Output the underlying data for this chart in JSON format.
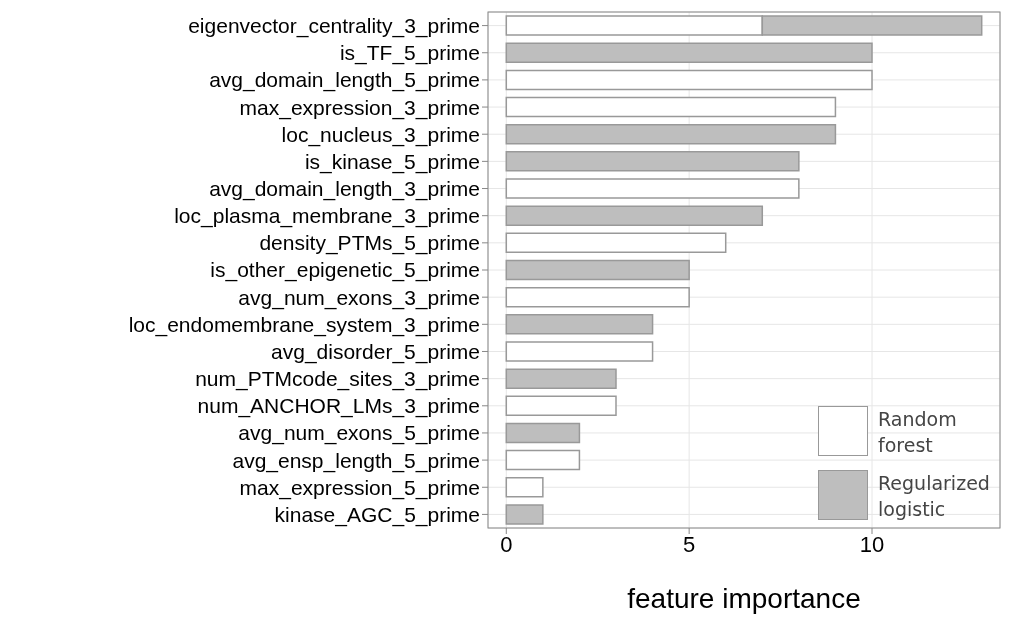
{
  "chart_data": {
    "type": "bar",
    "orientation": "horizontal",
    "stacked": true,
    "xlabel": "feature importance",
    "categories": [
      "eigenvector_centrality_3_prime",
      "is_TF_5_prime",
      "avg_domain_length_5_prime",
      "max_expression_3_prime",
      "loc_nucleus_3_prime",
      "is_kinase_5_prime",
      "avg_domain_length_3_prime",
      "loc_plasma_membrane_3_prime",
      "density_PTMs_5_prime",
      "is_other_epigenetic_5_prime",
      "avg_num_exons_3_prime",
      "loc_endomembrane_system_3_prime",
      "avg_disorder_5_prime",
      "num_PTMcode_sites_3_prime",
      "num_ANCHOR_LMs_3_prime",
      "avg_num_exons_5_prime",
      "avg_ensp_length_5_prime",
      "max_expression_5_prime",
      "kinase_AGC_5_prime"
    ],
    "series": [
      {
        "name": "Random forest",
        "color": "#ffffff",
        "values": [
          7,
          null,
          10,
          9,
          null,
          null,
          8,
          null,
          6,
          null,
          5,
          null,
          4,
          null,
          3,
          null,
          2,
          1,
          null
        ]
      },
      {
        "name": "Regularized logistic",
        "color": "#bebebe",
        "values": [
          6,
          10,
          null,
          null,
          9,
          8,
          null,
          7,
          null,
          5,
          null,
          4,
          null,
          3,
          null,
          2,
          null,
          null,
          1
        ]
      }
    ],
    "xlim": [
      -0.5,
      13.5
    ],
    "xticks": [
      0,
      5,
      10
    ],
    "grid": true,
    "legend": "bottom right"
  }
}
